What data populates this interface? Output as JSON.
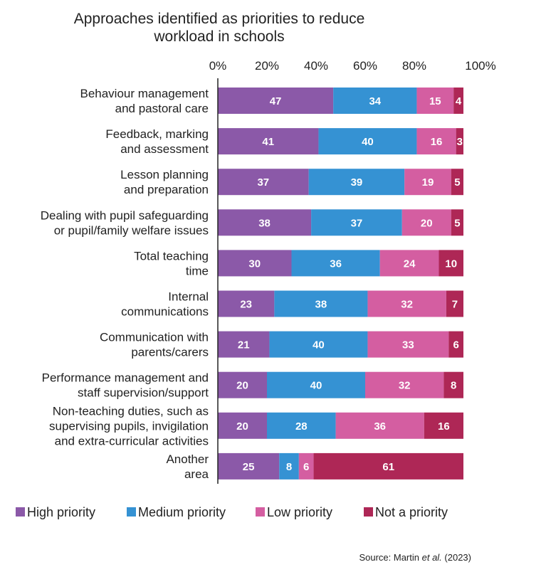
{
  "chart_data": {
    "type": "bar",
    "orientation": "horizontal",
    "stacked": true,
    "title": [
      "Approaches identified as priorities to reduce",
      "workload in schools"
    ],
    "xlim": [
      0,
      100
    ],
    "tick_labels": [
      "0%",
      "20%",
      "40%",
      "60%",
      "80%",
      "100%"
    ],
    "categories": [
      [
        "Behaviour management",
        "and pastoral care"
      ],
      [
        "Feedback, marking",
        "and assessment"
      ],
      [
        "Lesson planning",
        "and preparation"
      ],
      [
        "Dealing with pupil safeguarding",
        "or pupil/family welfare issues"
      ],
      [
        "Total teaching",
        "time"
      ],
      [
        "Internal",
        "communications"
      ],
      [
        "Communication with",
        "parents/carers"
      ],
      [
        "Performance management and",
        "staff supervision/support"
      ],
      [
        "Non-teaching duties, such as",
        "supervising pupils, invigilation",
        "and extra-curricular activities"
      ],
      [
        "Another",
        "area"
      ]
    ],
    "series": [
      {
        "name": "High priority",
        "color": "#8b59a8",
        "values": [
          47,
          41,
          37,
          38,
          30,
          23,
          21,
          20,
          20,
          25
        ]
      },
      {
        "name": "Medium priority",
        "color": "#3592d3",
        "values": [
          34,
          40,
          39,
          37,
          36,
          38,
          40,
          40,
          28,
          8
        ]
      },
      {
        "name": "Low priority",
        "color": "#d45ea1",
        "values": [
          15,
          16,
          19,
          20,
          24,
          32,
          33,
          32,
          36,
          6
        ]
      },
      {
        "name": "Not a priority",
        "color": "#ae2756",
        "values": [
          4,
          3,
          5,
          5,
          10,
          7,
          6,
          8,
          16,
          61
        ]
      }
    ],
    "legend_position": "bottom",
    "grid": false
  },
  "source": {
    "prefix": "Source: Martin ",
    "italic": "et al.",
    "suffix": " (2023)"
  }
}
